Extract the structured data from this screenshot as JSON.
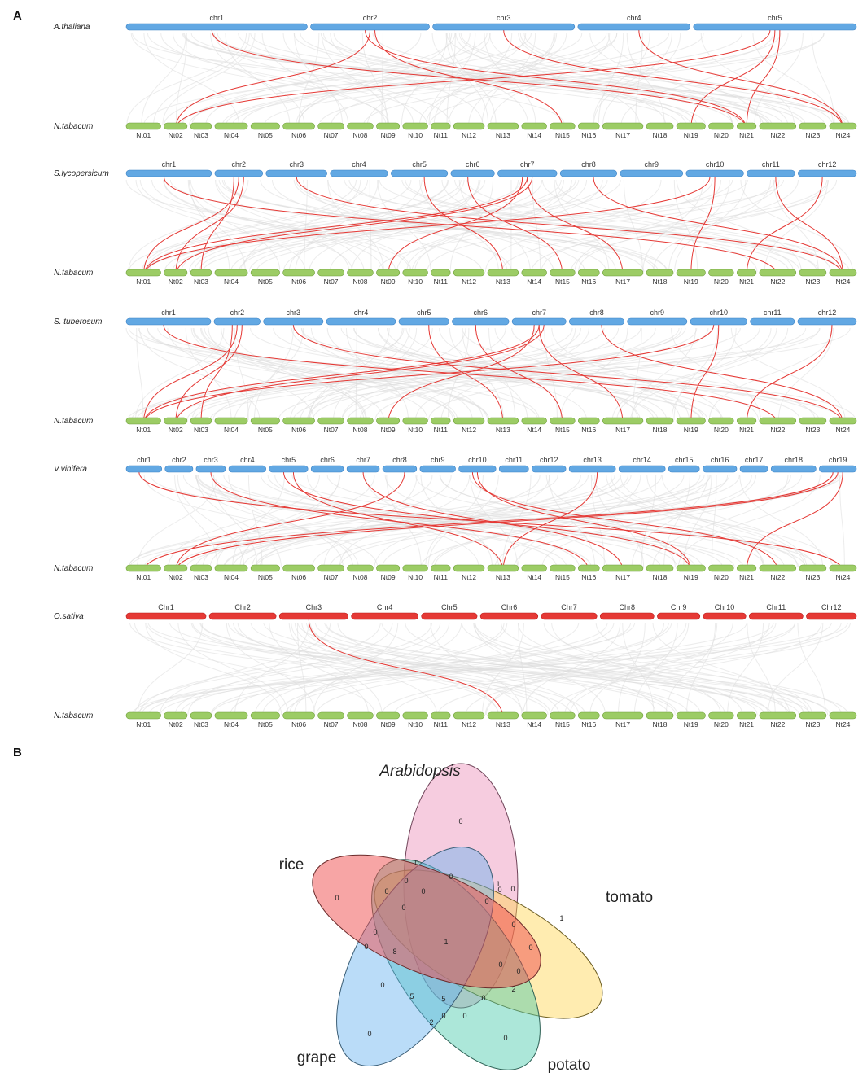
{
  "panels": {
    "a": "A",
    "b": "B"
  },
  "colors": {
    "ref_bar": "#62a8e3",
    "rice_bar": "#e53935",
    "nt_bar": "#9ccc65",
    "link": "#e53935",
    "bg_link": "#dcdcdc"
  },
  "tobacco": {
    "species": "N.tabacum",
    "chromosomes": [
      "Nt01",
      "Nt02",
      "Nt03",
      "Nt04",
      "Nt05",
      "Nt06",
      "Nt07",
      "Nt08",
      "Nt09",
      "Nt10",
      "Nt11",
      "Nt12",
      "Nt13",
      "Nt14",
      "Nt15",
      "Nt16",
      "Nt17",
      "Nt18",
      "Nt19",
      "Nt20",
      "Nt21",
      "Nt22",
      "Nt23",
      "Nt24"
    ]
  },
  "synteny": [
    {
      "species": "A.thaliana",
      "chromosomes": [
        "chr1",
        "chr2",
        "chr3",
        "chr4",
        "chr5"
      ],
      "links": [
        [
          "chr1",
          "Nt21"
        ],
        [
          "chr2",
          "Nt02"
        ],
        [
          "chr2",
          "Nt15"
        ],
        [
          "chr2",
          "Nt21"
        ],
        [
          "chr3",
          "Nt24"
        ],
        [
          "chr4",
          "Nt24"
        ],
        [
          "chr5",
          "Nt02"
        ],
        [
          "chr5",
          "Nt19"
        ],
        [
          "chr5",
          "Nt21"
        ]
      ]
    },
    {
      "species": "S.lycopersicum",
      "chromosomes": [
        "chr1",
        "chr2",
        "chr3",
        "chr4",
        "chr5",
        "chr6",
        "chr7",
        "chr8",
        "chr9",
        "chr10",
        "chr11",
        "chr12"
      ],
      "links": [
        [
          "chr1",
          "Nt22"
        ],
        [
          "chr2",
          "Nt01"
        ],
        [
          "chr2",
          "Nt02"
        ],
        [
          "chr2",
          "Nt03"
        ],
        [
          "chr3",
          "Nt24"
        ],
        [
          "chr5",
          "Nt13"
        ],
        [
          "chr6",
          "Nt15"
        ],
        [
          "chr7",
          "Nt01"
        ],
        [
          "chr7",
          "Nt02"
        ],
        [
          "chr7",
          "Nt09"
        ],
        [
          "chr7",
          "Nt17"
        ],
        [
          "chr8",
          "Nt24"
        ],
        [
          "chr10",
          "Nt01"
        ],
        [
          "chr10",
          "Nt19"
        ],
        [
          "chr11",
          "Nt24"
        ],
        [
          "chr12",
          "Nt21"
        ]
      ]
    },
    {
      "species": "S. tuberosum",
      "chromosomes": [
        "chr1",
        "chr2",
        "chr3",
        "chr4",
        "chr5",
        "chr6",
        "chr7",
        "chr8",
        "chr9",
        "chr10",
        "chr11",
        "chr12"
      ],
      "links": [
        [
          "chr1",
          "Nt22"
        ],
        [
          "chr2",
          "Nt01"
        ],
        [
          "chr2",
          "Nt02"
        ],
        [
          "chr2",
          "Nt03"
        ],
        [
          "chr3",
          "Nt24"
        ],
        [
          "chr5",
          "Nt13"
        ],
        [
          "chr6",
          "Nt15"
        ],
        [
          "chr7",
          "Nt01"
        ],
        [
          "chr7",
          "Nt02"
        ],
        [
          "chr7",
          "Nt09"
        ],
        [
          "chr7",
          "Nt17"
        ],
        [
          "chr8",
          "Nt24"
        ],
        [
          "chr10",
          "Nt01"
        ],
        [
          "chr10",
          "Nt19"
        ],
        [
          "chr12",
          "Nt21"
        ]
      ]
    },
    {
      "species": "V.vinifera",
      "chromosomes": [
        "chr1",
        "chr2",
        "chr3",
        "chr4",
        "chr5",
        "chr6",
        "chr7",
        "chr8",
        "chr9",
        "chr10",
        "chr11",
        "chr12",
        "chr13",
        "chr14",
        "chr15",
        "chr16",
        "chr17",
        "chr18",
        "chr19"
      ],
      "links": [
        [
          "chr1",
          "Nt24"
        ],
        [
          "chr3",
          "Nt16"
        ],
        [
          "chr5",
          "Nt13"
        ],
        [
          "chr5",
          "Nt19"
        ],
        [
          "chr7",
          "Nt17"
        ],
        [
          "chr8",
          "Nt02"
        ],
        [
          "chr10",
          "Nt22"
        ],
        [
          "chr10",
          "Nt19"
        ],
        [
          "chr13",
          "Nt13"
        ],
        [
          "chr19",
          "Nt01"
        ],
        [
          "chr19",
          "Nt02"
        ],
        [
          "chr19",
          "Nt21"
        ]
      ]
    },
    {
      "species": "O.sativa",
      "chromosomes": [
        "Chr1",
        "Chr2",
        "Chr3",
        "Chr4",
        "Chr5",
        "Chr6",
        "Chr7",
        "Chr8",
        "Chr9",
        "Chr10",
        "Chr11",
        "Chr12"
      ],
      "links": [
        [
          "Chr3",
          "Nt13"
        ]
      ]
    }
  ],
  "venn": {
    "sets": {
      "arabidopsis": "Arabidopsis",
      "rice": "rice",
      "tomato": "tomato",
      "grape": "grape",
      "potato": "potato"
    },
    "regions": [
      "0",
      "0",
      "1",
      "0",
      "0",
      "0",
      "0",
      "1",
      "0",
      "0",
      "0",
      "0",
      "0",
      "1",
      "0",
      "0",
      "0",
      "0",
      "0",
      "8",
      "0",
      "0",
      "0",
      "2",
      "5",
      "5",
      "0",
      "0",
      "0",
      "0",
      "2"
    ]
  }
}
